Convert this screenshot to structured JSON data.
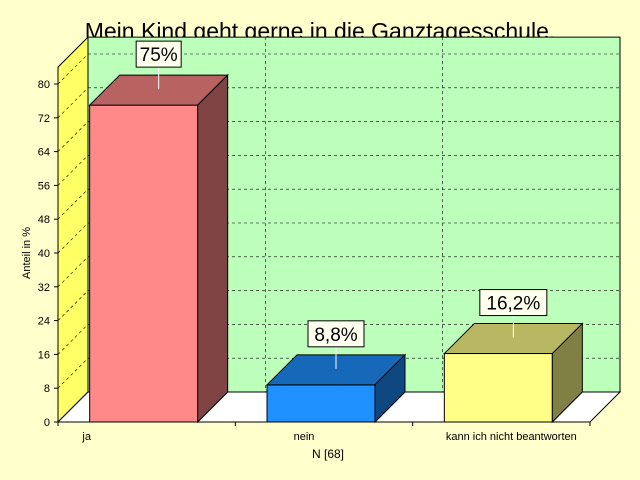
{
  "chart_data": {
    "type": "bar",
    "title": "Mein Kind geht gerne in die Ganztagesschule.",
    "ylabel": "Anteil in %",
    "xlabel": "N [68]",
    "ylim": [
      0,
      84
    ],
    "yticks": [
      0,
      8,
      16,
      24,
      32,
      40,
      48,
      56,
      64,
      72,
      80
    ],
    "categories": [
      "ja",
      "nein",
      "kann ich nicht beantworten"
    ],
    "values": [
      75,
      8.8,
      16.2
    ],
    "data_labels": [
      "75%",
      "8,8%",
      "16,2%"
    ],
    "colors": {
      "ja": "#FF8888",
      "nein": "#1E90FF",
      "kann ich nicht beantworten": "#FFFF88"
    },
    "style": "3d-bar",
    "grid": true,
    "background": "#FFFFCC",
    "plot_background": "#BBFFBB"
  }
}
